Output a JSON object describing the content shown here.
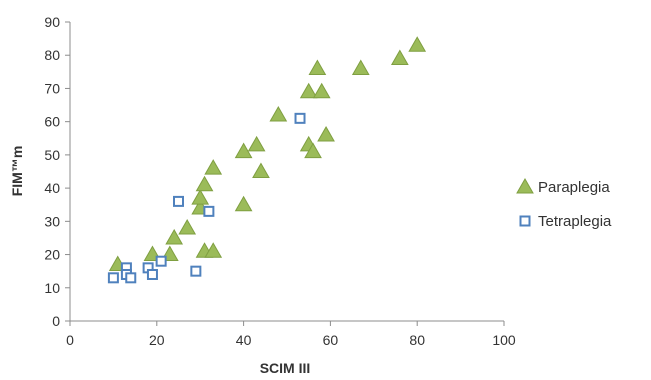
{
  "chart_data": {
    "type": "scatter",
    "xlabel": "SCIM III",
    "ylabel": "FIM™m",
    "xlim": [
      0,
      100
    ],
    "ylim": [
      0,
      90
    ],
    "x_ticks": [
      0,
      20,
      40,
      60,
      80,
      100
    ],
    "y_ticks": [
      0,
      10,
      20,
      30,
      40,
      50,
      60,
      70,
      80,
      90
    ],
    "grid": false,
    "legend_position": "right",
    "series": [
      {
        "name": "Paraplegia",
        "marker": "triangle",
        "color": "#9BBB59",
        "stroke": "#7F9F41",
        "points": [
          [
            11,
            17
          ],
          [
            19,
            20
          ],
          [
            23,
            20
          ],
          [
            24,
            25
          ],
          [
            27,
            28
          ],
          [
            30,
            34
          ],
          [
            30,
            37
          ],
          [
            31,
            41
          ],
          [
            31,
            21
          ],
          [
            33,
            21
          ],
          [
            33,
            46
          ],
          [
            40,
            51
          ],
          [
            40,
            35
          ],
          [
            43,
            53
          ],
          [
            44,
            45
          ],
          [
            48,
            62
          ],
          [
            55,
            69
          ],
          [
            55,
            53
          ],
          [
            56,
            51
          ],
          [
            57,
            76
          ],
          [
            58,
            69
          ],
          [
            59,
            56
          ],
          [
            67,
            76
          ],
          [
            76,
            79
          ],
          [
            80,
            83
          ]
        ]
      },
      {
        "name": "Tetraplegia",
        "marker": "square",
        "color": "#FFFFFF",
        "stroke": "#4F81BD",
        "points": [
          [
            10,
            13
          ],
          [
            13,
            16
          ],
          [
            13,
            14
          ],
          [
            14,
            13
          ],
          [
            18,
            16
          ],
          [
            19,
            14
          ],
          [
            21,
            18
          ],
          [
            25,
            36
          ],
          [
            29,
            15
          ],
          [
            32,
            33
          ],
          [
            53,
            61
          ]
        ]
      }
    ]
  }
}
